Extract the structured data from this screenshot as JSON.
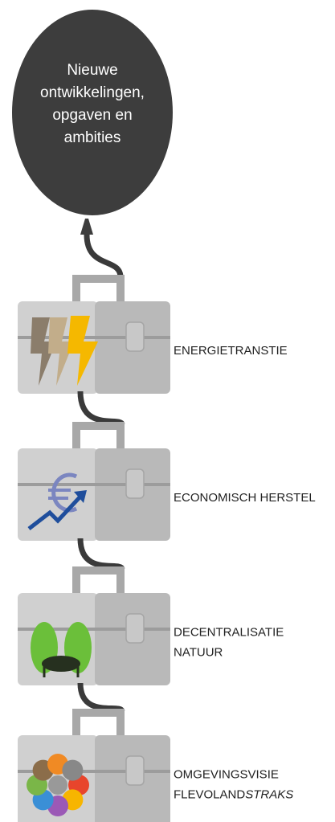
{
  "balloon": {
    "lines": [
      "Nieuwe",
      "ontwikkelingen,",
      "opgaven en",
      "ambities"
    ]
  },
  "toolboxes": [
    {
      "lines": [
        "ENERGIETRANSTIE"
      ]
    },
    {
      "lines": [
        "ECONOMISCH HERSTEL"
      ]
    },
    {
      "lines": [
        "DECENTRALISATIE",
        "NATUUR"
      ]
    },
    {
      "lines": [
        "OMGEVINGSVISIE",
        "FLEVOLAND"
      ],
      "emphasis": "STRAKS"
    }
  ]
}
